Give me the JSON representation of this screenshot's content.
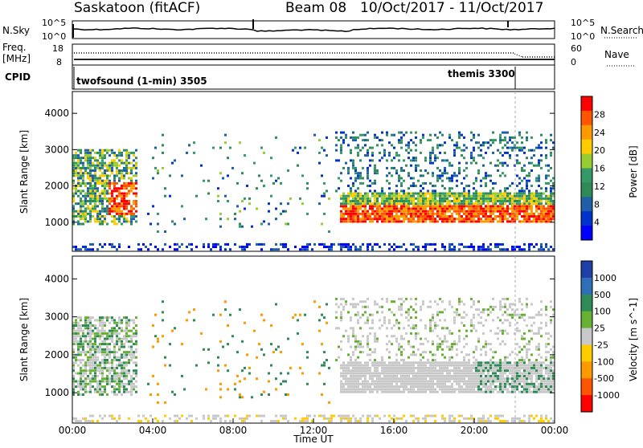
{
  "header": {
    "radar": "Saskatoon (fitACF)",
    "beam": "Beam 08",
    "date_range": "10/Oct/2017 - 11/Oct/2017"
  },
  "panels": {
    "noise": {
      "left_label": "N.Sky",
      "right_label": "N.Search",
      "left_ticks": [
        "10^5",
        "10^0"
      ],
      "right_ticks": [
        "10^5",
        "10^0"
      ]
    },
    "freq": {
      "left_label_1": "Freq.",
      "left_label_2": "[MHz]",
      "right_label": "Nave",
      "left_ticks": [
        "18",
        "8"
      ],
      "right_ticks": [
        "60",
        "0"
      ]
    },
    "cpid": {
      "label": "CPID",
      "modes": [
        {
          "name": "twofsound (1-min) 3505"
        },
        {
          "name": "themis 3300"
        }
      ]
    }
  },
  "chart_data": [
    {
      "type": "heatmap",
      "panel": "power",
      "ylabel": "Slant Range [km]",
      "xlabel": "",
      "x_range_hours": [
        0,
        24
      ],
      "ylim": [
        200,
        4600
      ],
      "y_ticks": [
        1000,
        2000,
        3000,
        4000
      ],
      "colorbar": {
        "label": "Power [dB]",
        "ticks": [
          "28",
          "24",
          "20",
          "16",
          "12",
          "8",
          "4"
        ],
        "colors": [
          "#ff0000",
          "#ff5500",
          "#ff9900",
          "#ffcc00",
          "#99cc33",
          "#339966",
          "#2e8b57",
          "#1f5fa8",
          "#0033cc",
          "#0000ff"
        ]
      },
      "echo_regions": [
        {
          "t0": 0.0,
          "t1": 3.2,
          "r0": 900,
          "r1": 3000,
          "level": "strong"
        },
        {
          "t0": 13.3,
          "t1": 24.0,
          "r0": 900,
          "r1": 1800,
          "level": "strong"
        },
        {
          "t0": 13.0,
          "t1": 24.0,
          "r0": 1800,
          "r1": 3500,
          "level": "weak"
        },
        {
          "t0": 3.5,
          "t1": 12.5,
          "r0": 300,
          "r1": 700,
          "level": "weak"
        }
      ]
    },
    {
      "type": "heatmap",
      "panel": "velocity",
      "ylabel": "Slant Range [km]",
      "xlabel": "Time UT",
      "x_ticks": [
        "00:00",
        "04:00",
        "08:00",
        "12:00",
        "16:00",
        "20:00",
        "00:00"
      ],
      "ylim": [
        200,
        4600
      ],
      "y_ticks": [
        1000,
        2000,
        3000,
        4000
      ],
      "colorbar": {
        "label": "Velocity [m s^-1]",
        "ticks": [
          "1000",
          "500",
          "100",
          "25",
          "-25",
          "-100",
          "-500",
          "-1000"
        ],
        "colors": [
          "#1f3fa8",
          "#2e6fb8",
          "#2e8b57",
          "#66b033",
          "#c8c8c8",
          "#ffcc00",
          "#ff9900",
          "#ff5500",
          "#ff0000"
        ]
      },
      "ground_scatter_color": "#c8c8c8"
    }
  ]
}
